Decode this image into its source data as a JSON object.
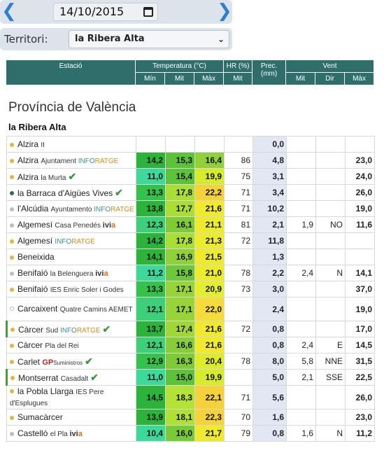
{
  "nav": {
    "date": "14/10/2015",
    "prev_icon": "chevron-left-icon",
    "next_icon": "chevron-right-icon"
  },
  "territory": {
    "label": "Territori:",
    "selected": "la Ribera Alta"
  },
  "table_header": {
    "station": "Estació",
    "temp": "Temperatura (°C)",
    "hr": "HR (%)",
    "prec": "Prec. (mm)",
    "wind": "Vent",
    "min": "Mín",
    "mit": "Mit",
    "max": "Màx",
    "hr_mit": "Mit",
    "w_mit": "Mit",
    "w_dir": "Dir",
    "w_max": "Màx"
  },
  "province": "Província de València",
  "region": "la Ribera Alta",
  "colors": {
    "header": "#2e6f6c",
    "prec_bg": "#e1e8f4",
    "check": "#3a9a3a"
  },
  "rows": [
    {
      "name": "Alzira",
      "sub": "II",
      "dot": "#e8b33c",
      "min": "",
      "mit": "",
      "max": "",
      "hr": "",
      "prec": "0,0",
      "wmit": "",
      "wdir": "",
      "wmax": ""
    },
    {
      "name": "Alzira",
      "sub": "Ajuntament INFORATGE",
      "dot": "#e8b33c",
      "min": "14,2",
      "mit": "15,3",
      "max": "16,4",
      "hr": "86",
      "prec": "4,8",
      "wmit": "",
      "wdir": "",
      "wmax": "23,0",
      "cmin": "#2cb33a",
      "cmit": "#5cc23a",
      "cmax": "#8fd03b"
    },
    {
      "name": "Alzira",
      "sub": "la Murta",
      "check": "✔",
      "dot": "#e8b33c",
      "min": "11,0",
      "mit": "15,4",
      "max": "19,9",
      "hr": "75",
      "prec": "3,1",
      "wmit": "",
      "wdir": "",
      "wmax": "24,0",
      "cmin": "#3dd99a",
      "cmit": "#5cc23a",
      "cmax": "#d6ec2a"
    },
    {
      "name": "la Barraca d'Aigües Vives",
      "sub": "",
      "check": "✔",
      "dot": "#2a6b5e",
      "min": "13,3",
      "mit": "17,8",
      "max": "22,2",
      "hr": "71",
      "prec": "3,4",
      "wmit": "",
      "wdir": "",
      "wmax": "26,0",
      "cmin": "#34c24a",
      "cmit": "#a9de34",
      "cmax": "#f5d23a"
    },
    {
      "name": "l'Alcúdia",
      "sub": "Ayuntamento INFORATGE",
      "dot": "#bdbdbd",
      "min": "13,8",
      "mit": "17,7",
      "max": "21,6",
      "hr": "71",
      "prec": "10,2",
      "wmit": "",
      "wdir": "",
      "wmax": "19,0",
      "cmin": "#2cb33a",
      "cmit": "#a9de34",
      "cmax": "#f0ea2c"
    },
    {
      "name": "Algemesí",
      "sub": "Casa Penedés ivia",
      "dot": "#bdbdbd",
      "min": "12,3",
      "mit": "16,1",
      "max": "21,1",
      "hr": "81",
      "prec": "2,1",
      "wmit": "1,9",
      "wdir": "NO",
      "wmax": "11,6",
      "cmin": "#3dd07a",
      "cmit": "#7ecb36",
      "cmax": "#ecec2c"
    },
    {
      "name": "Algemesí",
      "sub": "INFORATGE",
      "dot": "#e8b33c",
      "min": "14,2",
      "mit": "17,8",
      "max": "21,3",
      "hr": "72",
      "prec": "11,8",
      "wmit": "",
      "wdir": "",
      "wmax": "",
      "cmin": "#2cb33a",
      "cmit": "#a9de34",
      "cmax": "#ecec2c"
    },
    {
      "name": "Beneixida",
      "sub": "",
      "dot": "#e8b33c",
      "min": "14,1",
      "mit": "16,9",
      "max": "21,5",
      "hr": "",
      "prec": "1,3",
      "wmit": "",
      "wdir": "",
      "wmax": "",
      "cmin": "#2cb33a",
      "cmit": "#8fd03b",
      "cmax": "#f0ea2c"
    },
    {
      "name": "Benifaió",
      "sub": "la Belenguera ivia",
      "dot": "#bdbdbd",
      "min": "11,2",
      "mit": "15,8",
      "max": "21,0",
      "hr": "78",
      "prec": "2,2",
      "wmit": "2,4",
      "wdir": "N",
      "wmax": "14,1",
      "cmin": "#3dd99a",
      "cmit": "#6cc83a",
      "cmax": "#ecec2c"
    },
    {
      "name": "Benifaió",
      "sub": "IES Enric Soler i Godes",
      "dot": "#e8b33c",
      "min": "13,3",
      "mit": "17,1",
      "max": "20,9",
      "hr": "73",
      "prec": "3,0",
      "wmit": "",
      "wdir": "",
      "wmax": "37,0",
      "cmin": "#34c24a",
      "cmit": "#97d43a",
      "cmax": "#e4ee2c"
    },
    {
      "name": "Carcaixent",
      "sub": "Quatre Camins AEMET",
      "dot": "#ffffff",
      "tall": true,
      "min": "12,1",
      "mit": "17,1",
      "max": "22,0",
      "hr": "",
      "prec": "2,4",
      "wmit": "",
      "wdir": "",
      "wmax": "19,0",
      "cmin": "#3dd07a",
      "cmit": "#97d43a",
      "cmax": "#f5dc3a"
    },
    {
      "name": "Càrcer",
      "sub": "Sud INFORATGE",
      "check": "✔",
      "dot": "#e8b33c",
      "bar": true,
      "min": "13,7",
      "mit": "17,4",
      "max": "21,6",
      "hr": "72",
      "prec": "0,8",
      "wmit": "",
      "wdir": "",
      "wmax": "17,0",
      "cmin": "#2cb33a",
      "cmit": "#9fd836",
      "cmax": "#f0ea2c"
    },
    {
      "name": "Càrcer",
      "sub": "Pla del Rei",
      "dot": "#e8b33c",
      "min": "12,1",
      "mit": "16,6",
      "max": "21,6",
      "hr": "",
      "prec": "0,8",
      "wmit": "2,4",
      "wdir": "E",
      "wmax": "14,5",
      "cmin": "#3dd07a",
      "cmit": "#86ce38",
      "cmax": "#f0ea2c"
    },
    {
      "name": "Carlet",
      "sub": "GP",
      "sub2": "Suministros",
      "check": "✔",
      "dot": "#e8b33c",
      "min": "12,9",
      "mit": "16,3",
      "max": "20,4",
      "hr": "78",
      "prec": "8,0",
      "wmit": "5,8",
      "wdir": "NNE",
      "wmax": "31,5",
      "cmin": "#34c24a",
      "cmit": "#7ecb36",
      "cmax": "#dcec2a"
    },
    {
      "name": "Montserrat",
      "sub": "Casadalt",
      "check": "✔",
      "dot": "#e8b33c",
      "bar": true,
      "min": "11,0",
      "mit": "15,0",
      "max": "19,9",
      "hr": "",
      "prec": "5,0",
      "wmit": "2,1",
      "wdir": "SSE",
      "wmax": "22,5",
      "cmin": "#3dd99a",
      "cmit": "#5cc23a",
      "cmax": "#d6ec2a"
    },
    {
      "name": "la Pobla Llarga",
      "sub": "IES Pere d'Esplugues",
      "dot": "#e8b33c",
      "tall": true,
      "min": "14,5",
      "mit": "18,3",
      "max": "22,1",
      "hr": "71",
      "prec": "5,6",
      "wmit": "",
      "wdir": "",
      "wmax": "26,0",
      "cmin": "#2cb33a",
      "cmit": "#b5e236",
      "cmax": "#f5d23a"
    },
    {
      "name": "Sumacàrcer",
      "sub": "",
      "dot": "#e8b33c",
      "min": "13,9",
      "mit": "18,1",
      "max": "22,3",
      "hr": "70",
      "prec": "1,6",
      "wmit": "",
      "wdir": "",
      "wmax": "23,0",
      "cmin": "#2cb33a",
      "cmit": "#b0e034",
      "cmax": "#f5d23a"
    },
    {
      "name": "Castelló",
      "sub": "el Pla ivia",
      "dot": "#bdbdbd",
      "min": "10,4",
      "mit": "16,0",
      "max": "21,7",
      "hr": "79",
      "prec": "0,8",
      "wmit": "1,6",
      "wdir": "N",
      "wmax": "11,2",
      "cmin": "#3dd99a",
      "cmit": "#79ca38",
      "cmax": "#f0ea2c"
    }
  ]
}
